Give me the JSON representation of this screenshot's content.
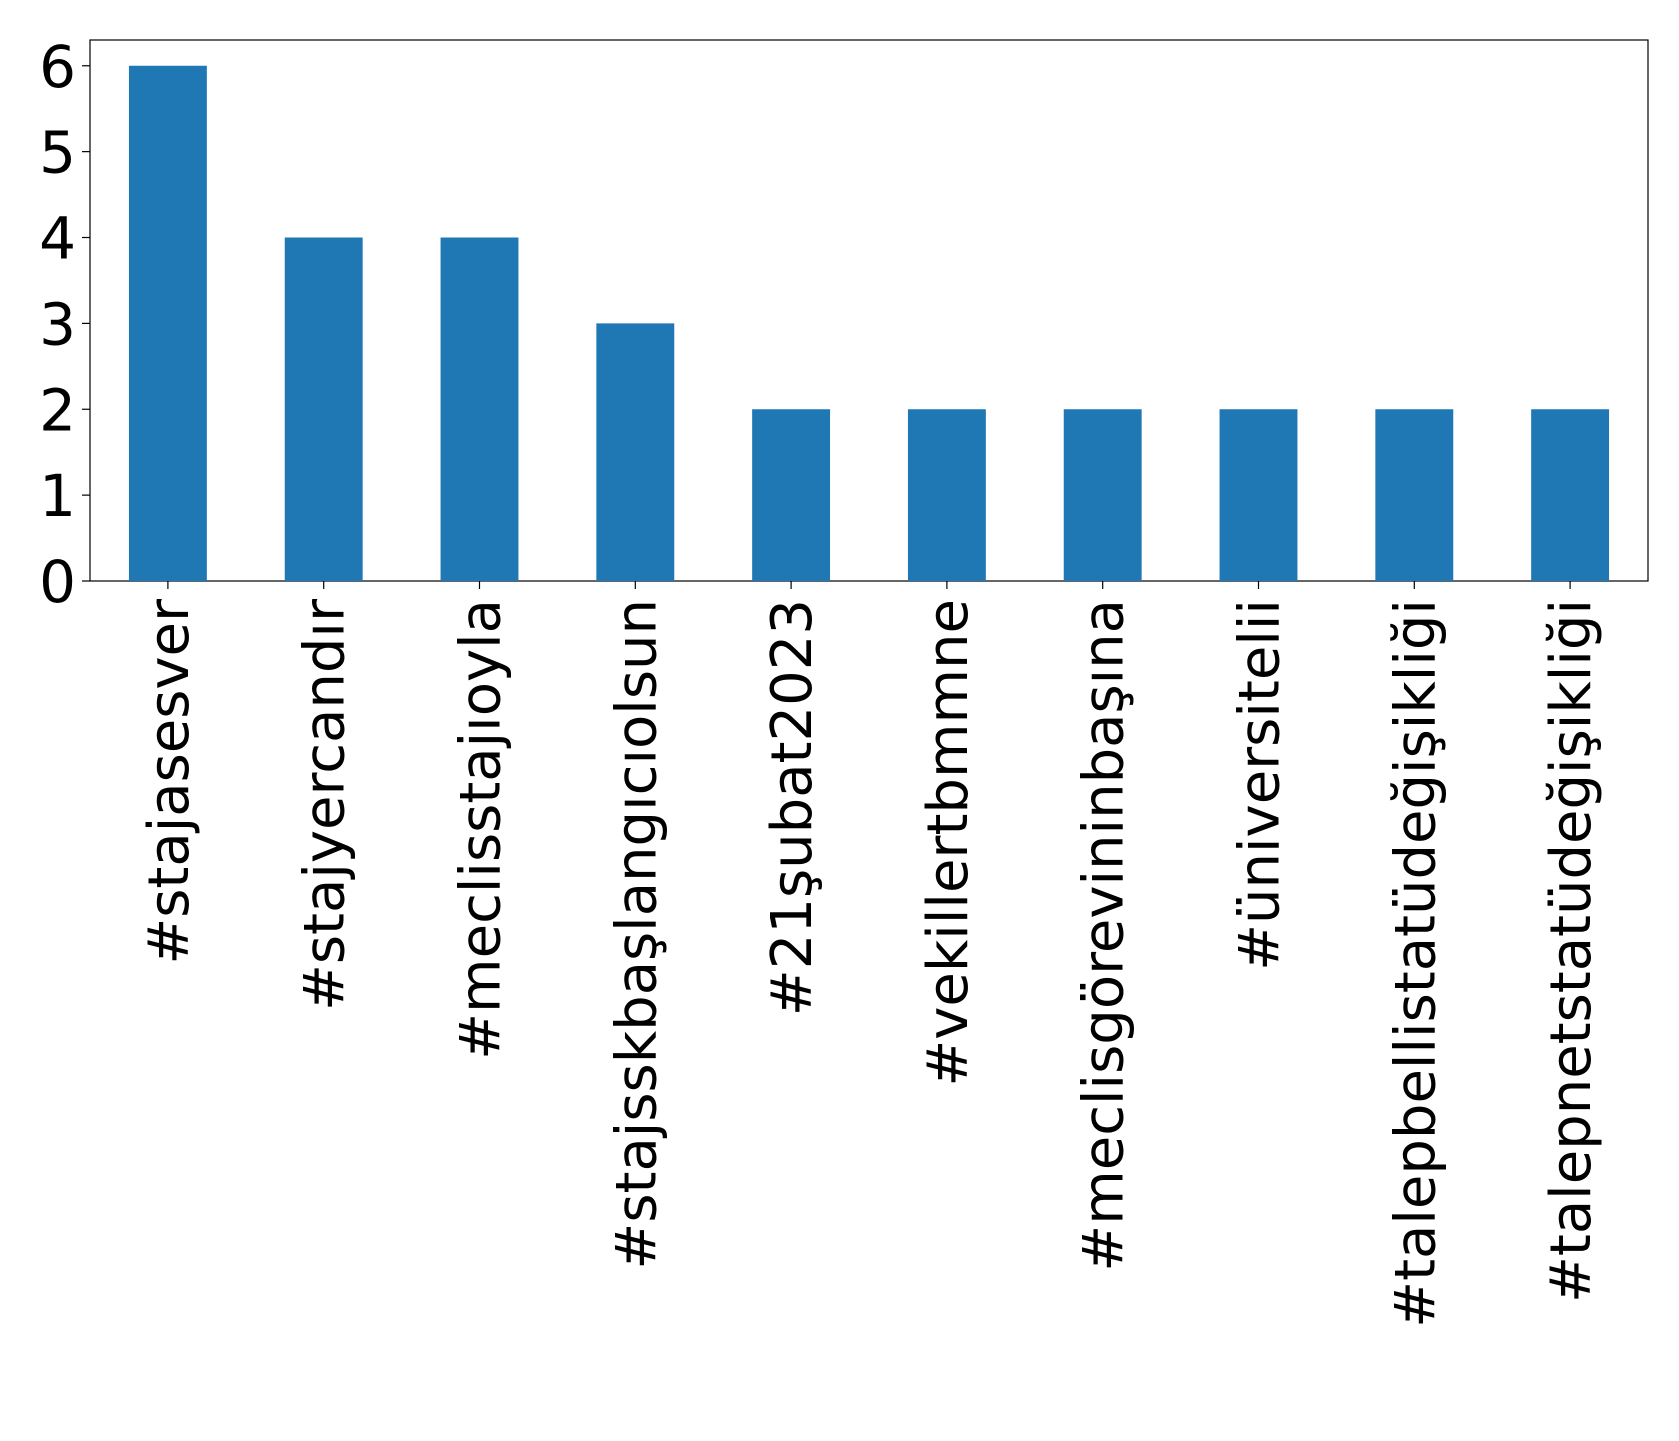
{
  "chart_data": {
    "type": "bar",
    "categories": [
      "#stajasesver",
      "#stajyercandır",
      "#meclisstajıoyla",
      "#stajsskbaşlangıcıolsun",
      "#21şubat2023",
      "#vekillertbmmne",
      "#meclisgörevininbaşına",
      "#üniversitelii",
      "#talepbellistatüdeğişikliği",
      "#talepnetstatüdeğişikliği"
    ],
    "values": [
      6,
      4,
      4,
      3,
      2,
      2,
      2,
      2,
      2,
      2
    ],
    "color": "#1f77b4",
    "ylim": [
      0,
      6.3
    ],
    "yticks": [
      0,
      1,
      2,
      3,
      4,
      5,
      6
    ],
    "grid": false
  }
}
